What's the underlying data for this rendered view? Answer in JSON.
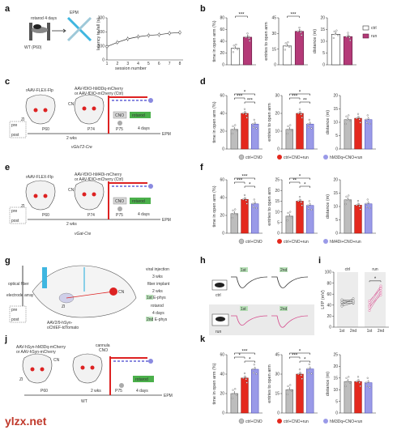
{
  "panel_labels": [
    "a",
    "b",
    "c",
    "d",
    "e",
    "f",
    "g",
    "h",
    "i",
    "j",
    "k"
  ],
  "panel_a": {
    "rotarod_label": "rotarod 4 days",
    "epm_label": "EPM",
    "mouse_label": "WT (P60)",
    "chart_ylabel": "latency to fall (s)",
    "chart_xlabel": "session number"
  },
  "panel_b": {
    "legend": [
      "ctrl",
      "run"
    ],
    "plots": [
      {
        "ylabel": "time in open arm (%)",
        "sig": "***"
      },
      {
        "ylabel": "entries to open arm",
        "sig": "***"
      },
      {
        "ylabel": "distance (m)",
        "sig": ""
      }
    ]
  },
  "panel_c": {
    "virus_left": "rAAV-FLEX-Flp",
    "virus_right1": "AAV-fDIO-hM3Dq-mCherry",
    "virus_right2": "or AAV-fDIO-mCherry (Ctrl)",
    "p60": "P60",
    "p74": "P74",
    "p75": "P75",
    "two_wks": "2 wks",
    "four_days": "4 days",
    "cno": "CNO",
    "rotarod": "rotarod",
    "epm": "EPM",
    "cre": "vGluT2-Cre",
    "zi": "ZI",
    "cn": "CN",
    "pre": "pre",
    "post": "post"
  },
  "panel_d": {
    "legend": [
      "ctrl+CNO",
      "ctrl+CNO+run",
      "hM3Dq+CNO+run"
    ],
    "plots": [
      {
        "ylabel": "time in open arm (%)"
      },
      {
        "ylabel": "entries to open arm"
      },
      {
        "ylabel": "distance (m)"
      }
    ]
  },
  "panel_e": {
    "virus_left": "rAAV-FLEX-Flp",
    "virus_right1": "AAV-fDIO-hM4Di-mCherry",
    "virus_right2": "or AAV-fDIO-mCherry (Ctrl)",
    "p60": "P60",
    "p74": "P74",
    "p75": "P75",
    "two_wks": "2 wks",
    "four_days": "4 days",
    "cno": "CNO",
    "rotarod": "rotarod",
    "epm": "EPM",
    "cre": "vGat-Cre",
    "zi": "ZI",
    "cn": "CN",
    "pre": "pre",
    "post": "post"
  },
  "panel_f": {
    "legend": [
      "ctrl+CNO",
      "ctrl+CNO+run",
      "hM4Di+CNO+run"
    ],
    "plots": [
      {
        "ylabel": "time in open arm (%)"
      },
      {
        "ylabel": "entries to open arm"
      },
      {
        "ylabel": "distance (m)"
      }
    ]
  },
  "panel_g": {
    "optical_fiber": "optical fiber",
    "electrode_array": "electrode array",
    "virus": "AAV2/9-hSyn-",
    "virus2": "oChIEF-tdTomato",
    "zi": "ZI",
    "cn": "CN",
    "pre": "pre",
    "post": "post",
    "steps": [
      "viral injection",
      "3 wks",
      "fiber implant",
      "2 wks",
      "1st  E-phys",
      "rotarod",
      "4 days",
      "2nd  E-phys"
    ]
  },
  "panel_h": {
    "first": "1st",
    "second": "2nd",
    "ctrl": "ctrl",
    "run": "run"
  },
  "panel_i": {
    "ylabel": "LFP (mV)",
    "groups": [
      "ctrl",
      "run"
    ],
    "x": [
      "1st",
      "2nd",
      "1st",
      "2nd"
    ],
    "sig": "*"
  },
  "panel_j": {
    "virus1": "AAV-hSyn-hM3Dq-mCherry",
    "virus2": "or AAV-hSyn-mCherry",
    "cannula": "cannula",
    "cno": "CNO",
    "p60": "P60",
    "p75": "P75",
    "two_wks": "2 wks",
    "four_days": "4 days",
    "rotarod": "rotarod",
    "epm": "EPM",
    "wt": "WT",
    "cn": "CN",
    "zi": "ZI"
  },
  "panel_k": {
    "legend": [
      "ctrl+CNO",
      "ctrl+CNO+run",
      "hM3Dq+CNO+run"
    ],
    "plots": [
      {
        "ylabel": "time in open arm (%)"
      },
      {
        "ylabel": "entries to open arm"
      },
      {
        "ylabel": "distance (m)"
      }
    ]
  },
  "watermark": "ylzx.net",
  "colors": {
    "gray": "#bdbdbd",
    "red": "#e4281d",
    "blue": "#9a9ae8",
    "run": "#b43a78",
    "pink": "#d64a8c"
  },
  "chart_data": [
    {
      "type": "line",
      "panel": "a",
      "x": [
        1,
        2,
        3,
        4,
        5,
        6,
        7,
        8
      ],
      "series": [
        {
          "values": [
            95,
            125,
            150,
            165,
            175,
            180,
            190,
            195
          ]
        }
      ],
      "xlabel": "session number",
      "ylabel": "latency to fall (s)",
      "ylim": [
        0,
        300
      ],
      "yticks": [
        0,
        100,
        200,
        300
      ]
    },
    {
      "type": "bar",
      "panel": "b",
      "categories": [
        "ctrl",
        "run"
      ],
      "plots": [
        {
          "ylabel": "time in open arm (%)",
          "values": [
            28,
            47
          ],
          "ylim": [
            0,
            80
          ],
          "yticks": [
            0,
            20,
            40,
            60,
            80
          ]
        },
        {
          "ylabel": "entries to open arm",
          "values": [
            18,
            32
          ],
          "ylim": [
            0,
            45
          ],
          "yticks": [
            0,
            15,
            30,
            45
          ]
        },
        {
          "ylabel": "distance (m)",
          "values": [
            13,
            12
          ],
          "ylim": [
            0,
            20
          ],
          "yticks": [
            0,
            5,
            10,
            15,
            20
          ]
        }
      ]
    },
    {
      "type": "bar",
      "panel": "d",
      "categories": [
        "ctrl+CNO",
        "ctrl+CNO+run",
        "hM3Dq+CNO+run"
      ],
      "plots": [
        {
          "ylabel": "time in open arm (%)",
          "values": [
            22,
            40,
            28
          ],
          "ylim": [
            0,
            60
          ],
          "yticks": [
            0,
            20,
            40,
            60
          ]
        },
        {
          "ylabel": "entries to open arm",
          "values": [
            11,
            20,
            14
          ],
          "ylim": [
            0,
            30
          ],
          "yticks": [
            0,
            10,
            20,
            30
          ]
        },
        {
          "ylabel": "distance (m)",
          "values": [
            11,
            11.5,
            11
          ],
          "ylim": [
            0,
            20
          ],
          "yticks": [
            0,
            5,
            10,
            15,
            20
          ]
        }
      ]
    },
    {
      "type": "bar",
      "panel": "f",
      "categories": [
        "ctrl+CNO",
        "ctrl+CNO+run",
        "hM4Di+CNO+run"
      ],
      "plots": [
        {
          "ylabel": "time in open arm (%)",
          "values": [
            22,
            38,
            33
          ],
          "ylim": [
            0,
            60
          ],
          "yticks": [
            0,
            20,
            40,
            60
          ]
        },
        {
          "ylabel": "entries to open arm",
          "values": [
            8,
            15,
            13
          ],
          "ylim": [
            0,
            25
          ],
          "yticks": [
            0,
            5,
            10,
            15,
            20,
            25
          ]
        },
        {
          "ylabel": "distance (m)",
          "values": [
            12.5,
            10.5,
            11
          ],
          "ylim": [
            0,
            20
          ],
          "yticks": [
            0,
            5,
            10,
            15,
            20
          ]
        }
      ]
    },
    {
      "type": "line",
      "panel": "i",
      "ylabel": "LFP (mV)",
      "ylim": [
        0,
        100
      ],
      "yticks": [
        0,
        20,
        40,
        60,
        80,
        100
      ],
      "ctrl_pairs": [
        [
          44,
          43
        ],
        [
          48,
          46
        ],
        [
          40,
          52
        ],
        [
          50,
          49
        ],
        [
          38,
          44
        ],
        [
          45,
          47
        ]
      ],
      "run_pairs": [
        [
          30,
          62
        ],
        [
          40,
          72
        ],
        [
          38,
          58
        ],
        [
          45,
          75
        ],
        [
          48,
          70
        ],
        [
          35,
          66
        ]
      ]
    },
    {
      "type": "bar",
      "panel": "k",
      "categories": [
        "ctrl+CNO",
        "ctrl+CNO+run",
        "hM3Dq+CNO+run"
      ],
      "plots": [
        {
          "ylabel": "time in open arm (%)",
          "values": [
            20,
            36,
            45
          ],
          "ylim": [
            0,
            60
          ],
          "yticks": [
            0,
            20,
            40,
            60
          ]
        },
        {
          "ylabel": "entries to open arm",
          "values": [
            18,
            30,
            34
          ],
          "ylim": [
            0,
            45
          ],
          "yticks": [
            0,
            15,
            30,
            45
          ]
        },
        {
          "ylabel": "distance (m)",
          "values": [
            13.5,
            13.5,
            13
          ],
          "ylim": [
            0,
            25
          ],
          "yticks": [
            0,
            5,
            10,
            15,
            20,
            25
          ]
        }
      ]
    }
  ]
}
